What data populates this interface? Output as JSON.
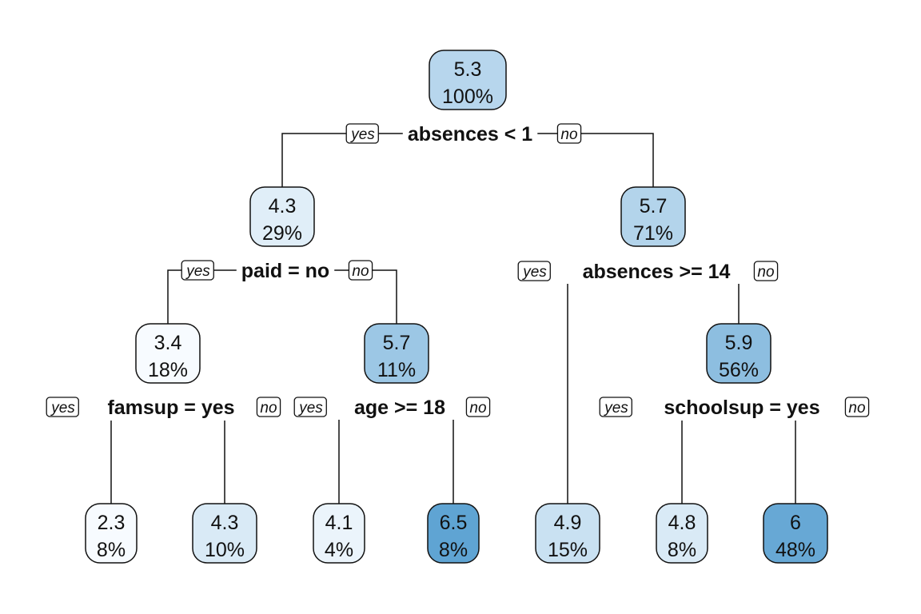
{
  "tree": {
    "branch_labels": {
      "yes": "yes",
      "no": "no"
    },
    "color_scale": {
      "light": "#f7fbff",
      "dark": "#5fa4d3"
    },
    "nodes": [
      {
        "id": "n1",
        "value": "5.3",
        "percent": "100%",
        "intensity": 0.42,
        "split": "absences < 1"
      },
      {
        "id": "n2",
        "value": "4.3",
        "percent": "29%",
        "intensity": 0.15,
        "split": "paid = no"
      },
      {
        "id": "n3",
        "value": "5.7",
        "percent": "71%",
        "intensity": 0.45,
        "split": "absences >= 14"
      },
      {
        "id": "n4",
        "value": "3.4",
        "percent": "18%",
        "intensity": 0.0,
        "split": "famsup = yes"
      },
      {
        "id": "n5",
        "value": "5.7",
        "percent": "11%",
        "intensity": 0.6,
        "split": "age >= 18"
      },
      {
        "id": "n6",
        "value": "5.9",
        "percent": "56%",
        "intensity": 0.7,
        "split": "schoolsup = yes"
      },
      {
        "id": "n7",
        "value": "2.3",
        "percent": "8%",
        "intensity": 0.0
      },
      {
        "id": "n8",
        "value": "4.3",
        "percent": "10%",
        "intensity": 0.2
      },
      {
        "id": "n9",
        "value": "4.1",
        "percent": "4%",
        "intensity": 0.08
      },
      {
        "id": "n10",
        "value": "6.5",
        "percent": "8%",
        "intensity": 1.0
      },
      {
        "id": "n11",
        "value": "4.9",
        "percent": "15%",
        "intensity": 0.3
      },
      {
        "id": "n12",
        "value": "4.8",
        "percent": "8%",
        "intensity": 0.2
      },
      {
        "id": "n13",
        "value": "6",
        "percent": "48%",
        "intensity": 0.95
      }
    ]
  }
}
